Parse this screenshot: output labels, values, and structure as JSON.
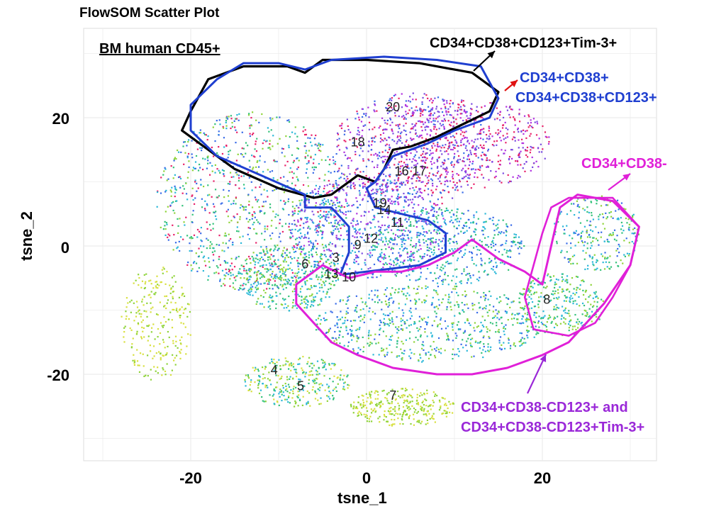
{
  "chart_data": {
    "type": "scatter",
    "title": "FlowSOM Scatter Plot",
    "panel_label": "BM human CD45+",
    "xlabel": "tsne_1",
    "ylabel": "tsne_2",
    "xlim": [
      -32,
      33
    ],
    "ylim": [
      -33,
      33
    ],
    "xticks": [
      -20,
      0,
      20
    ],
    "yticks": [
      20,
      0,
      -20
    ],
    "xtick_labels": [
      "-20",
      "0",
      "20"
    ],
    "ytick_labels": [
      "20",
      "0",
      "-20"
    ],
    "grid": true,
    "cluster_labels": [
      {
        "label": "20",
        "x": 3,
        "y": 21
      },
      {
        "label": "18",
        "x": -1,
        "y": 15.5
      },
      {
        "label": "16",
        "x": 4,
        "y": 11
      },
      {
        "label": "17",
        "x": 6,
        "y": 11
      },
      {
        "label": "19",
        "x": 1.5,
        "y": 6
      },
      {
        "label": "14",
        "x": 2,
        "y": 5
      },
      {
        "label": "11",
        "x": 3.5,
        "y": 3
      },
      {
        "label": "12",
        "x": 0.5,
        "y": 0.5
      },
      {
        "label": "9",
        "x": -1,
        "y": -0.5
      },
      {
        "label": "3",
        "x": -3.5,
        "y": -2.5
      },
      {
        "label": "6",
        "x": -7,
        "y": -3.5
      },
      {
        "label": "13",
        "x": -4,
        "y": -5
      },
      {
        "label": "10",
        "x": -2,
        "y": -5.5
      },
      {
        "label": "8",
        "x": 20.5,
        "y": -9
      },
      {
        "label": "4",
        "x": -10.5,
        "y": -20
      },
      {
        "label": "5",
        "x": -7.5,
        "y": -22.5
      },
      {
        "label": "7",
        "x": 3,
        "y": -24
      }
    ],
    "annotations": [
      {
        "text": "CD34+CD38+CD123+Tim-3+",
        "color": "#000000"
      },
      {
        "text": "CD34+CD38+",
        "color": "#1f3fd0"
      },
      {
        "text": "CD34+CD38+CD123+",
        "color": "#1f3fd0"
      },
      {
        "text": "CD34+CD38-",
        "color": "#e020d8"
      },
      {
        "text": "CD34+CD38-CD123+ and",
        "color": "#9a28d8"
      },
      {
        "text": "CD34+CD38-CD123+Tim-3+",
        "color": "#9a28d8"
      }
    ]
  }
}
